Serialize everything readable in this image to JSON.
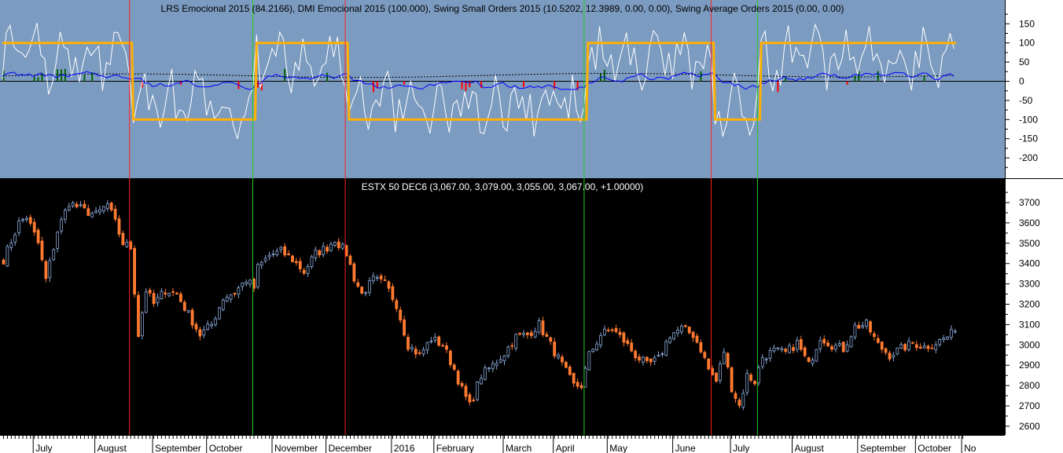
{
  "colors": {
    "top_bg": "#7c9bc0",
    "bottom_bg": "#000000",
    "axis_bg": "#ffffff",
    "up_candle": "#8aa8d8",
    "down_candle": "#ff7a30",
    "lrs_line": "#ffffff",
    "dmi_line": "#ffb000",
    "small_orders": "#0000ff",
    "avg_orders": "#000000",
    "bull_marker": "#006400",
    "bear_marker": "#ff0000",
    "long_vline": "#22cc22",
    "short_vline": "#ff2222",
    "zero_line": "#000000"
  },
  "top_panel": {
    "title": "LRS Emocional 2015 (84.2166), DMI Emocional 2015 (100.000), Swing Small Orders 2015 (10.5202, 12.3989, 0.00, 0.00), Swing Average Orders 2015 (0.00, 0.00)"
  },
  "bottom_panel": {
    "title": "ESTX 50 DEC6 (3,067.00, 3,079.00, 3,055.00, 3,067.00, +1.00000)"
  },
  "chart_data": [
    {
      "type": "line",
      "panel": "indicator",
      "title": "LRS Emocional 2015 (84.2166), DMI Emocional 2015 (100.000), Swing Small Orders 2015 (10.5202, 12.3989, 0.00, 0.00), Swing Average Orders 2015 (0.00, 0.00)",
      "x_axis": "bar index 0-249 (approx. Jul 2015 – Oct 2016, daily)",
      "ylim": [
        -240,
        200
      ],
      "yticks": [
        150,
        100,
        50,
        0,
        -50,
        -100,
        -150,
        -200
      ],
      "grid": false,
      "series": [
        {
          "name": "DMI Emocional 2015",
          "step_segments": [
            {
              "from": 0,
              "to": 33,
              "value": 100
            },
            {
              "from": 34,
              "to": 65,
              "value": -100
            },
            {
              "from": 66,
              "to": 89,
              "value": 100
            },
            {
              "from": 90,
              "to": 151,
              "value": -100
            },
            {
              "from": 152,
              "to": 184,
              "value": 100
            },
            {
              "from": 185,
              "to": 196,
              "value": -100
            },
            {
              "from": 197,
              "to": 249,
              "value": 100
            }
          ]
        },
        {
          "name": "LRS Emocional 2015",
          "last_value": 84.2166
        },
        {
          "name": "Swing Small Orders 2015",
          "values_shown": [
            10.5202,
            12.3989,
            0.0,
            0.0
          ]
        },
        {
          "name": "Swing Average Orders 2015",
          "values_shown": [
            0.0,
            0.0
          ]
        }
      ]
    },
    {
      "type": "candlestick",
      "panel": "price",
      "title": "ESTX 50 DEC6 (3,067.00, 3,079.00, 3,055.00, 3,067.00, +1.00000)",
      "last_bar": {
        "open": 3067.0,
        "high": 3079.0,
        "low": 3055.0,
        "close": 3067.0,
        "change": 1.0
      },
      "ylim": [
        2545,
        3785
      ],
      "yticks": [
        3700,
        3600,
        3500,
        3400,
        3300,
        3200,
        3100,
        3000,
        2900,
        2800,
        2700,
        2600
      ],
      "grid": false,
      "close_anchors": [
        [
          0,
          3420
        ],
        [
          4,
          3600
        ],
        [
          6,
          3630
        ],
        [
          9,
          3500
        ],
        [
          11,
          3320
        ],
        [
          14,
          3560
        ],
        [
          17,
          3700
        ],
        [
          21,
          3660
        ],
        [
          24,
          3640
        ],
        [
          27,
          3690
        ],
        [
          29,
          3600
        ],
        [
          31,
          3500
        ],
        [
          33,
          3480
        ],
        [
          35,
          3050
        ],
        [
          37,
          3270
        ],
        [
          39,
          3200
        ],
        [
          42,
          3270
        ],
        [
          45,
          3250
        ],
        [
          48,
          3150
        ],
        [
          51,
          3050
        ],
        [
          54,
          3100
        ],
        [
          57,
          3230
        ],
        [
          60,
          3260
        ],
        [
          63,
          3320
        ],
        [
          65,
          3280
        ],
        [
          66,
          3380
        ],
        [
          69,
          3440
        ],
        [
          72,
          3460
        ],
        [
          75,
          3420
        ],
        [
          78,
          3360
        ],
        [
          81,
          3450
        ],
        [
          84,
          3480
        ],
        [
          86,
          3520
        ],
        [
          89,
          3450
        ],
        [
          91,
          3330
        ],
        [
          93,
          3250
        ],
        [
          96,
          3320
        ],
        [
          99,
          3300
        ],
        [
          102,
          3200
        ],
        [
          105,
          3000
        ],
        [
          108,
          2950
        ],
        [
          111,
          3030
        ],
        [
          114,
          3000
        ],
        [
          117,
          2880
        ],
        [
          119,
          2780
        ],
        [
          121,
          2700
        ],
        [
          124,
          2850
        ],
        [
          127,
          2900
        ],
        [
          130,
          2960
        ],
        [
          133,
          3040
        ],
        [
          136,
          3050
        ],
        [
          139,
          3100
        ],
        [
          142,
          3000
        ],
        [
          145,
          2900
        ],
        [
          148,
          2800
        ],
        [
          150,
          2800
        ],
        [
          152,
          2950
        ],
        [
          155,
          3050
        ],
        [
          158,
          3080
        ],
        [
          161,
          3020
        ],
        [
          164,
          2950
        ],
        [
          167,
          2900
        ],
        [
          170,
          2930
        ],
        [
          173,
          3050
        ],
        [
          176,
          3080
        ],
        [
          179,
          3050
        ],
        [
          181,
          2980
        ],
        [
          183,
          2880
        ],
        [
          185,
          2820
        ],
        [
          187,
          2970
        ],
        [
          189,
          2790
        ],
        [
          191,
          2700
        ],
        [
          193,
          2850
        ],
        [
          195,
          2820
        ],
        [
          197,
          2940
        ],
        [
          200,
          2970
        ],
        [
          203,
          2960
        ],
        [
          206,
          3010
        ],
        [
          209,
          2900
        ],
        [
          212,
          3040
        ],
        [
          215,
          3000
        ],
        [
          218,
          2980
        ],
        [
          221,
          3090
        ],
        [
          224,
          3100
        ],
        [
          227,
          3000
        ],
        [
          230,
          2950
        ],
        [
          233,
          2980
        ],
        [
          236,
          3010
        ],
        [
          239,
          2990
        ],
        [
          242,
          3010
        ],
        [
          245,
          3040
        ],
        [
          247,
          3067
        ]
      ]
    }
  ],
  "x_axis": {
    "labels": [
      "July",
      "August",
      "September",
      "October",
      "November",
      "December",
      "2016",
      "February",
      "March",
      "April",
      "May",
      "June",
      "July",
      "August",
      "September",
      "October",
      "No"
    ],
    "label_positions_bar": [
      8,
      24,
      39,
      53,
      70,
      84,
      101,
      112,
      130,
      143,
      157,
      174,
      189,
      205,
      222,
      237,
      249
    ]
  },
  "vertical_markers": [
    {
      "bar": 33,
      "type": "short"
    },
    {
      "bar": 65,
      "type": "long"
    },
    {
      "bar": 89,
      "type": "short"
    },
    {
      "bar": 151,
      "type": "long"
    },
    {
      "bar": 184,
      "type": "short"
    },
    {
      "bar": 196,
      "type": "long"
    }
  ]
}
